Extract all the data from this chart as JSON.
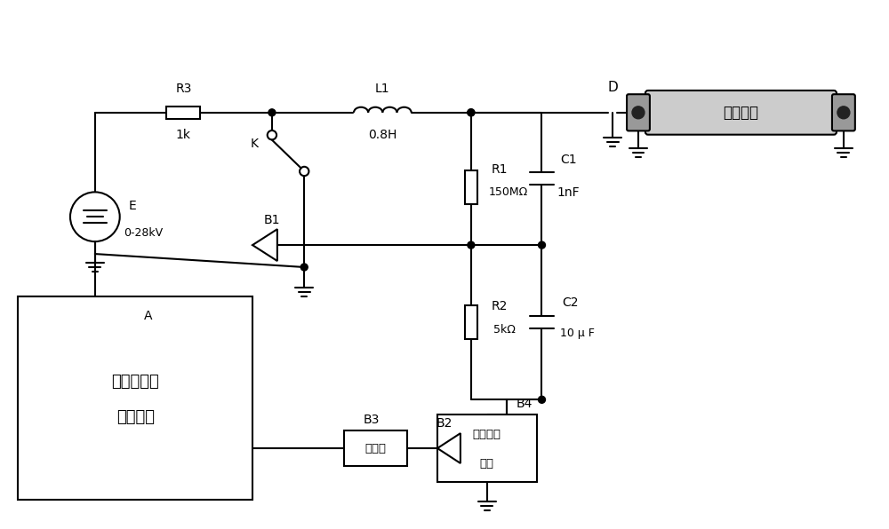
{
  "bg_color": "#ffffff",
  "line_color": "#000000",
  "line_width": 1.5,
  "gray_color": "#808080",
  "label_R3": "R3",
  "label_1k": "1k",
  "label_L1": "L1",
  "label_08H": "0.8H",
  "label_K": "K",
  "label_E": "E",
  "label_0_28kV": "0-28kV",
  "label_A": "A",
  "label_R1": "R1",
  "label_150MOhm": "150MΩ",
  "label_R2": "R2",
  "label_5kOhm": "5kΩ",
  "label_C1": "C1",
  "label_1nF": "1nF",
  "label_C2": "C2",
  "label_10uF": "10 μ F",
  "label_D": "D",
  "label_B1": "B1",
  "label_B2": "B2",
  "label_B3": "B3",
  "label_B4": "B4"
}
